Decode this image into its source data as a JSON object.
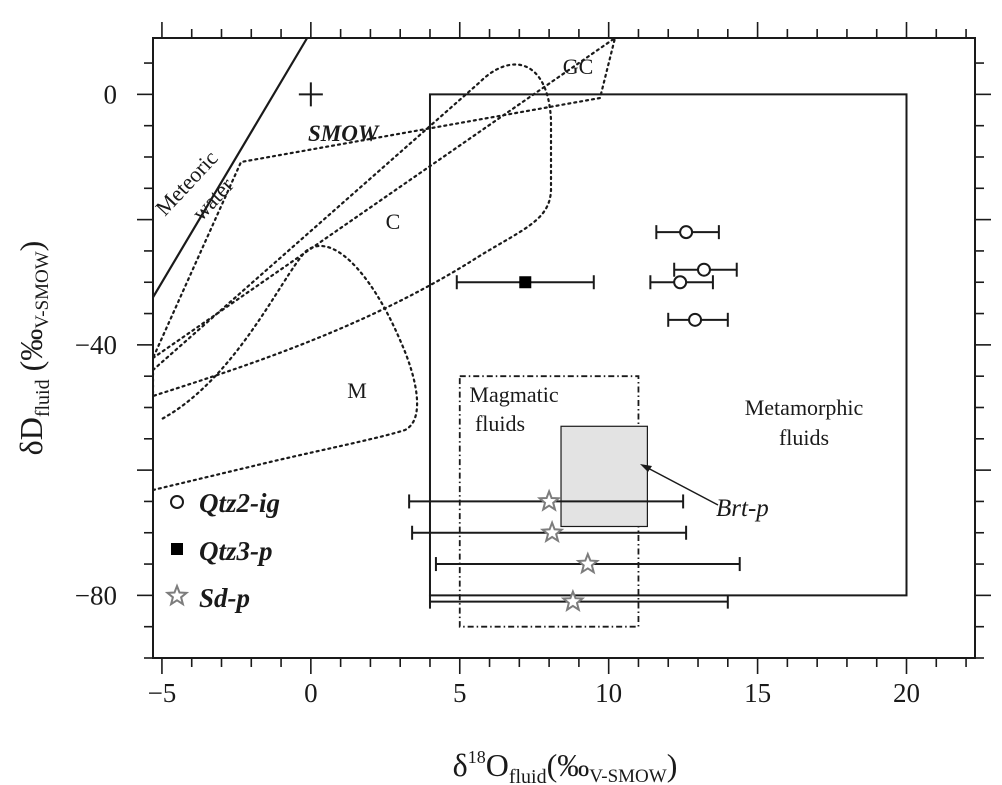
{
  "chart_data": {
    "type": "scatter",
    "title": "",
    "xlabel": {
      "symbol": "δ",
      "sup": "18",
      "main": "O",
      "sub": "fluid",
      "unit_open": "(‰",
      "unit_sub": "V-SMOW",
      "unit_close": ")"
    },
    "ylabel": {
      "symbol": "δD",
      "sub": "fluid",
      "unit_open": " (‰",
      "unit_sub": "V-SMOW",
      "unit_close": ")"
    },
    "xlim": [
      -5.3,
      22.3
    ],
    "ylim": [
      -90,
      9
    ],
    "xticks": [
      {
        "value": -5,
        "label": "−5"
      },
      {
        "value": 0,
        "label": "0"
      },
      {
        "value": 5,
        "label": "5"
      },
      {
        "value": 10,
        "label": "10"
      },
      {
        "value": 15,
        "label": "15"
      },
      {
        "value": 20,
        "label": "20"
      }
    ],
    "yticks": [
      {
        "value": 0,
        "label": "0"
      },
      {
        "value": -40,
        "label": "−40"
      },
      {
        "value": -80,
        "label": "−80"
      }
    ],
    "x_minor_step": 1,
    "y_minor_step": 5,
    "series": [
      {
        "name": "Qtz2-ig",
        "marker": "open-circle",
        "points": [
          {
            "x": 12.6,
            "y": -22,
            "xerr": [
              11.6,
              13.7
            ]
          },
          {
            "x": 13.2,
            "y": -28,
            "xerr": [
              12.2,
              14.3
            ]
          },
          {
            "x": 12.4,
            "y": -30,
            "xerr": [
              11.4,
              13.5
            ]
          },
          {
            "x": 12.9,
            "y": -36,
            "xerr": [
              12.0,
              14.0
            ]
          }
        ]
      },
      {
        "name": "Qtz3-p",
        "marker": "filled-square",
        "points": [
          {
            "x": 7.2,
            "y": -30,
            "xerr": [
              4.9,
              9.5
            ]
          }
        ]
      },
      {
        "name": "Sd-p",
        "marker": "open-star",
        "points": [
          {
            "x": 8.0,
            "y": -65,
            "xerr": [
              3.3,
              12.5
            ]
          },
          {
            "x": 8.1,
            "y": -70,
            "xerr": [
              3.4,
              12.6
            ]
          },
          {
            "x": 9.3,
            "y": -75,
            "xerr": [
              4.2,
              14.4
            ]
          },
          {
            "x": 8.8,
            "y": -81,
            "xerr": [
              4.0,
              14.0
            ]
          }
        ]
      }
    ],
    "fields": [
      {
        "label": "Metamorphic fluids",
        "label_lines": [
          "Metamorphic",
          "fluids"
        ],
        "style": "solid",
        "x": [
          4,
          20
        ],
        "y": [
          -80,
          0
        ]
      },
      {
        "label": "Magmatic fluids",
        "label_lines": [
          "Magmatic",
          "fluids"
        ],
        "style": "dash-dot",
        "x": [
          5,
          11
        ],
        "y": [
          -85,
          -45
        ]
      },
      {
        "label": "Brt-p",
        "style": "gray-fill",
        "x": [
          8.4,
          11.3
        ],
        "y": [
          -69,
          -53
        ]
      }
    ],
    "outlined_regions": [
      {
        "label": "GC"
      },
      {
        "label": "C"
      },
      {
        "label": "M"
      }
    ],
    "reference_line": {
      "label_lines": [
        "Meteoric",
        "water"
      ],
      "equation": "δD = 8δ18O + 10"
    },
    "reference_point": {
      "label": "SMOW",
      "x": 0,
      "y": 0
    },
    "legend_position": "bottom-left",
    "grid": false
  },
  "colors": {
    "axes": "#1a1a1a",
    "brt_fill": "#e3e3e3",
    "star": "#7d7d7d"
  }
}
